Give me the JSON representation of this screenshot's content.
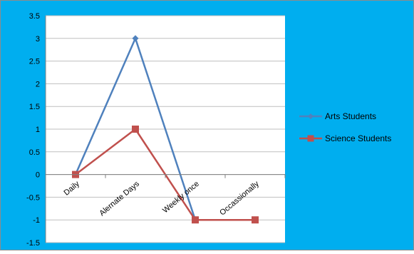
{
  "chart_data": {
    "type": "line",
    "title": "",
    "xlabel": "",
    "ylabel": "",
    "categories": [
      "Daily",
      "Alernate Days",
      "Weekly once",
      "Occassionally"
    ],
    "ylim": [
      -1.5,
      3.5
    ],
    "yticks": [
      "3.5",
      "3",
      "2.5",
      "2",
      "1.5",
      "1",
      "0.5",
      "0",
      "-0.5",
      "-1",
      "-1.5"
    ],
    "grid": true,
    "legend_position": "right",
    "background_color": "#00aeef",
    "plot_background": "#ffffff",
    "gridline_color": "#bfbfbf",
    "series": [
      {
        "name": "Arts Students",
        "values": [
          0,
          3,
          -1,
          null
        ],
        "color": "#4f81bd",
        "marker": "diamond"
      },
      {
        "name": "Science Students",
        "values": [
          0,
          1,
          -1,
          -1
        ],
        "color": "#c0504d",
        "marker": "square"
      }
    ]
  }
}
